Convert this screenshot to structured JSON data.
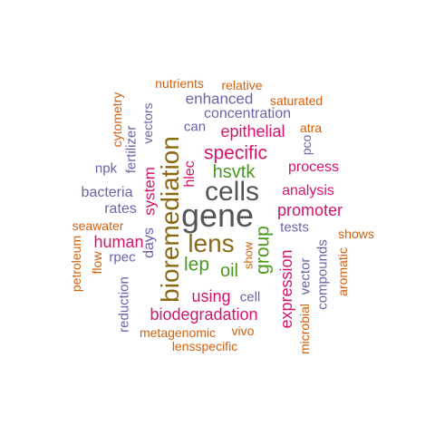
{
  "palette": {
    "gray": "#555555",
    "brown": "#8b6914",
    "magenta": "#d6136c",
    "green": "#4a9a1e",
    "purple": "#6c63a8",
    "orange": "#d2600f"
  },
  "words": [
    {
      "text": "gene",
      "color": "gray"
    },
    {
      "text": "cells",
      "color": "gray"
    },
    {
      "text": "bioremediation",
      "color": "brown"
    },
    {
      "text": "lens",
      "color": "brown"
    },
    {
      "text": "specific",
      "color": "magenta"
    },
    {
      "text": "hsvtk",
      "color": "green"
    },
    {
      "text": "lep",
      "color": "green"
    },
    {
      "text": "group",
      "color": "green"
    },
    {
      "text": "oil",
      "color": "green"
    },
    {
      "text": "epithelial",
      "color": "magenta"
    },
    {
      "text": "promoter",
      "color": "magenta"
    },
    {
      "text": "human",
      "color": "magenta"
    },
    {
      "text": "using",
      "color": "magenta"
    },
    {
      "text": "biodegradation",
      "color": "magenta"
    },
    {
      "text": "expression",
      "color": "magenta"
    },
    {
      "text": "system",
      "color": "magenta"
    },
    {
      "text": "analysis",
      "color": "magenta"
    },
    {
      "text": "process",
      "color": "magenta"
    },
    {
      "text": "hlec",
      "color": "magenta"
    },
    {
      "text": "enhanced",
      "color": "purple"
    },
    {
      "text": "concentration",
      "color": "purple"
    },
    {
      "text": "days",
      "color": "purple"
    },
    {
      "text": "bacteria",
      "color": "purple"
    },
    {
      "text": "rates",
      "color": "purple"
    },
    {
      "text": "fertilizer",
      "color": "purple"
    },
    {
      "text": "npk",
      "color": "purple"
    },
    {
      "text": "rpec",
      "color": "purple"
    },
    {
      "text": "reduction",
      "color": "purple"
    },
    {
      "text": "vectors",
      "color": "purple"
    },
    {
      "text": "can",
      "color": "purple"
    },
    {
      "text": "pco",
      "color": "purple"
    },
    {
      "text": "tests",
      "color": "purple"
    },
    {
      "text": "cell",
      "color": "purple"
    },
    {
      "text": "vector",
      "color": "purple"
    },
    {
      "text": "compounds",
      "color": "purple"
    },
    {
      "text": "nutrients",
      "color": "orange"
    },
    {
      "text": "relative",
      "color": "orange"
    },
    {
      "text": "saturated",
      "color": "orange"
    },
    {
      "text": "atra",
      "color": "orange"
    },
    {
      "text": "cytometry",
      "color": "orange"
    },
    {
      "text": "seawater",
      "color": "orange"
    },
    {
      "text": "flow",
      "color": "orange"
    },
    {
      "text": "petroleum",
      "color": "orange"
    },
    {
      "text": "show",
      "color": "orange"
    },
    {
      "text": "shows",
      "color": "orange"
    },
    {
      "text": "aromatic",
      "color": "orange"
    },
    {
      "text": "microbial",
      "color": "orange"
    },
    {
      "text": "metagenomic",
      "color": "orange"
    },
    {
      "text": "vivo",
      "color": "orange"
    },
    {
      "text": "lensspecific",
      "color": "orange"
    }
  ]
}
